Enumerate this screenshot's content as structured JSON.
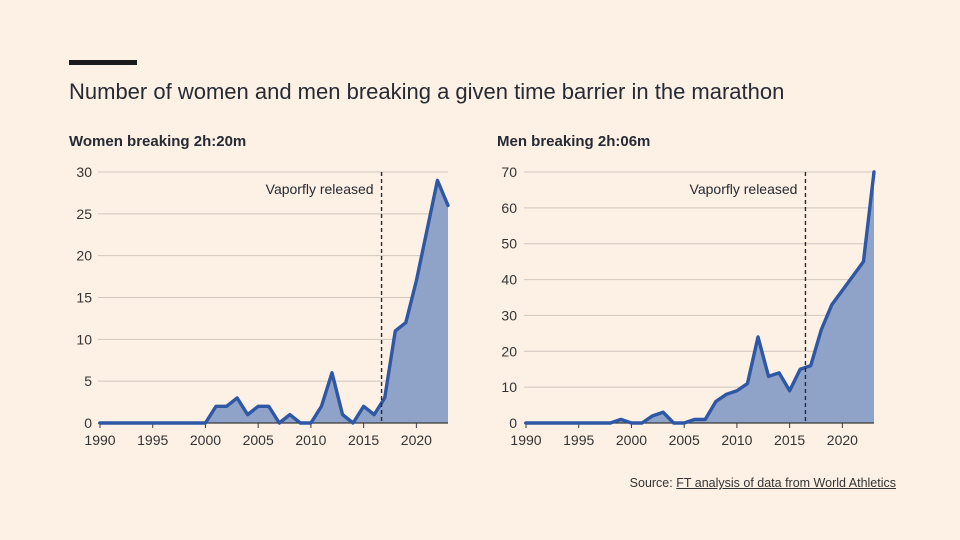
{
  "header": {
    "title": "Number of women and men breaking a given time barrier in the marathon"
  },
  "source": {
    "label": "Source:",
    "link_text": "FT analysis of data from World Athletics"
  },
  "colors": {
    "background": "#fdf1e6",
    "line": "#2e58a6",
    "area": "#8fa2c7",
    "grid": "#cfc6bd"
  },
  "chart_data": [
    {
      "type": "area",
      "title": "Women breaking 2h:20m",
      "xlabel": "",
      "ylabel": "",
      "xlim": [
        1990,
        2023
      ],
      "ylim": [
        0,
        30
      ],
      "yticks": [
        0,
        5,
        10,
        15,
        20,
        25,
        30
      ],
      "xticks": [
        1990,
        1995,
        2000,
        2005,
        2010,
        2015,
        2020
      ],
      "annotation": {
        "x": 2016.7,
        "label": "Vaporfly released"
      },
      "x": [
        1990,
        1991,
        1992,
        1993,
        1994,
        1995,
        1996,
        1997,
        1998,
        1999,
        2000,
        2001,
        2002,
        2003,
        2004,
        2005,
        2006,
        2007,
        2008,
        2009,
        2010,
        2011,
        2012,
        2013,
        2014,
        2015,
        2016,
        2017,
        2018,
        2019,
        2020,
        2021,
        2022,
        2023
      ],
      "values": [
        0,
        0,
        0,
        0,
        0,
        0,
        0,
        0,
        0,
        0,
        0,
        2,
        2,
        3,
        1,
        2,
        2,
        0,
        1,
        0,
        0,
        2,
        6,
        1,
        0,
        2,
        1,
        3,
        11,
        12,
        17,
        23,
        29,
        26
      ]
    },
    {
      "type": "area",
      "title": "Men breaking 2h:06m",
      "xlabel": "",
      "ylabel": "",
      "xlim": [
        1990,
        2023
      ],
      "ylim": [
        0,
        70
      ],
      "yticks": [
        0,
        10,
        20,
        30,
        40,
        50,
        60,
        70
      ],
      "xticks": [
        1990,
        1995,
        2000,
        2005,
        2010,
        2015,
        2020
      ],
      "annotation": {
        "x": 2016.5,
        "label": "Vaporfly released"
      },
      "x": [
        1990,
        1991,
        1992,
        1993,
        1994,
        1995,
        1996,
        1997,
        1998,
        1999,
        2000,
        2001,
        2002,
        2003,
        2004,
        2005,
        2006,
        2007,
        2008,
        2009,
        2010,
        2011,
        2012,
        2013,
        2014,
        2015,
        2016,
        2017,
        2018,
        2019,
        2020,
        2021,
        2022,
        2023
      ],
      "values": [
        0,
        0,
        0,
        0,
        0,
        0,
        0,
        0,
        0,
        1,
        0,
        0,
        2,
        3,
        0,
        0,
        1,
        1,
        6,
        8,
        9,
        11,
        24,
        13,
        14,
        9,
        15,
        16,
        26,
        33,
        37,
        41,
        45,
        70
      ]
    }
  ]
}
